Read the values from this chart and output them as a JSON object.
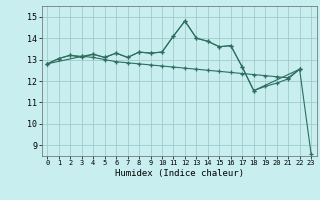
{
  "xlabel": "Humidex (Indice chaleur)",
  "background_color": "#c8eef0",
  "grid_color": "#a0cccc",
  "line_color": "#2d6e5e",
  "xlim": [
    -0.5,
    23.5
  ],
  "ylim": [
    8.5,
    15.5
  ],
  "yticks": [
    9,
    10,
    11,
    12,
    13,
    14,
    15
  ],
  "xticks": [
    0,
    1,
    2,
    3,
    4,
    5,
    6,
    7,
    8,
    9,
    10,
    11,
    12,
    13,
    14,
    15,
    16,
    17,
    18,
    19,
    20,
    21,
    22,
    23
  ],
  "series": [
    {
      "x": [
        0,
        1,
        2,
        3,
        4,
        5,
        6,
        7,
        8,
        9,
        10,
        11,
        12,
        13,
        14,
        15,
        16,
        17,
        18,
        19,
        20,
        21,
        22
      ],
      "y": [
        12.8,
        13.05,
        13.2,
        13.1,
        13.25,
        13.1,
        13.3,
        13.1,
        13.35,
        13.3,
        13.35,
        14.1,
        14.8,
        14.0,
        13.85,
        13.6,
        13.65,
        12.65,
        11.55,
        11.75,
        11.9,
        12.1,
        12.55
      ]
    },
    {
      "x": [
        0,
        1,
        2,
        3,
        4,
        5,
        6,
        7,
        8,
        9,
        10,
        11,
        12,
        13,
        14,
        15,
        16,
        17,
        18,
        19,
        20,
        21,
        22,
        23
      ],
      "y": [
        12.8,
        13.05,
        13.2,
        13.15,
        13.1,
        13.0,
        12.9,
        12.85,
        12.8,
        12.75,
        12.7,
        12.65,
        12.6,
        12.55,
        12.5,
        12.45,
        12.4,
        12.35,
        12.3,
        12.25,
        12.2,
        12.15,
        12.55,
        8.6
      ]
    },
    {
      "x": [
        0,
        3,
        4,
        5,
        6,
        7,
        8,
        9,
        10,
        11,
        12,
        13,
        14,
        15,
        16,
        17,
        18,
        22
      ],
      "y": [
        12.8,
        13.15,
        13.25,
        13.1,
        13.3,
        13.1,
        13.35,
        13.3,
        13.35,
        14.1,
        14.8,
        14.0,
        13.85,
        13.6,
        13.65,
        12.65,
        11.55,
        12.55
      ]
    }
  ]
}
